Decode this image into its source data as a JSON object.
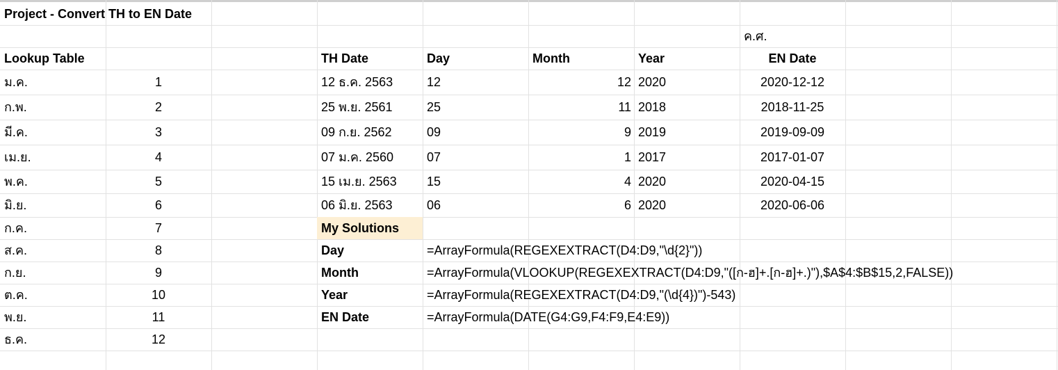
{
  "sheet": {
    "title": "Project - Convert TH to EN Date",
    "era_note": "ค.ศ.",
    "headers": {
      "lookup_table": "Lookup Table",
      "th_date": "TH Date",
      "day": "Day",
      "month": "Month",
      "year": "Year",
      "en_date": "EN Date"
    },
    "lookup": [
      {
        "abbr": "ม.ค.",
        "num": "1"
      },
      {
        "abbr": "ก.พ.",
        "num": "2"
      },
      {
        "abbr": "มี.ค.",
        "num": "3"
      },
      {
        "abbr": "เม.ย.",
        "num": "4"
      },
      {
        "abbr": "พ.ค.",
        "num": "5"
      },
      {
        "abbr": "มิ.ย.",
        "num": "6"
      },
      {
        "abbr": "ก.ค.",
        "num": "7"
      },
      {
        "abbr": "ส.ค.",
        "num": "8"
      },
      {
        "abbr": "ก.ย.",
        "num": "9"
      },
      {
        "abbr": "ต.ค.",
        "num": "10"
      },
      {
        "abbr": "พ.ย.",
        "num": "11"
      },
      {
        "abbr": "ธ.ค.",
        "num": "12"
      }
    ],
    "dates": [
      {
        "th": "12 ธ.ค. 2563",
        "day": "12",
        "month": "12",
        "year": "2020",
        "en": "2020-12-12"
      },
      {
        "th": "25 พ.ย. 2561",
        "day": "25",
        "month": "11",
        "year": "2018",
        "en": "2018-11-25"
      },
      {
        "th": "09 ก.ย. 2562",
        "day": "09",
        "month": "9",
        "year": "2019",
        "en": "2019-09-09"
      },
      {
        "th": "07 ม.ค. 2560",
        "day": "07",
        "month": "1",
        "year": "2017",
        "en": "2017-01-07"
      },
      {
        "th": "15 เม.ย. 2563",
        "day": "15",
        "month": "4",
        "year": "2020",
        "en": "2020-04-15"
      },
      {
        "th": "06 มิ.ย. 2563",
        "day": "06",
        "month": "6",
        "year": "2020",
        "en": "2020-06-06"
      }
    ],
    "solutions_header": "My Solutions",
    "solutions": [
      {
        "label": "Day",
        "formula": "=ArrayFormula(REGEXEXTRACT(D4:D9,\"\\d{2}\"))"
      },
      {
        "label": "Month",
        "formula": "=ArrayFormula(VLOOKUP(REGEXEXTRACT(D4:D9,\"([ก-ฮ]+.[ก-ฮ]+.)\"),$A$4:$B$15,2,FALSE))"
      },
      {
        "label": "Year",
        "formula": "=ArrayFormula(REGEXEXTRACT(D4:D9,\"(\\d{4})\")-543)"
      },
      {
        "label": "EN Date",
        "formula": "=ArrayFormula(DATE(G4:G9,F4:F9,E4:E9))"
      }
    ],
    "colors": {
      "grid": "#e2e2e2",
      "highlight": "#fdefd4"
    }
  }
}
